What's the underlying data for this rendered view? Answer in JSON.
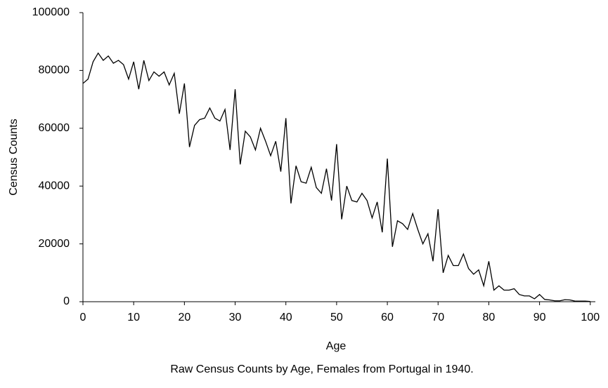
{
  "chart_data": {
    "type": "line",
    "caption": "Raw Census Counts by Age, Females from Portugal in 1940.",
    "xlabel": "Age",
    "ylabel": "Census Counts",
    "color": "#000000",
    "x": [
      0,
      1,
      2,
      3,
      4,
      5,
      6,
      7,
      8,
      9,
      10,
      11,
      12,
      13,
      14,
      15,
      16,
      17,
      18,
      19,
      20,
      21,
      22,
      23,
      24,
      25,
      26,
      27,
      28,
      29,
      30,
      31,
      32,
      33,
      34,
      35,
      36,
      37,
      38,
      39,
      40,
      41,
      42,
      43,
      44,
      45,
      46,
      47,
      48,
      49,
      50,
      51,
      52,
      53,
      54,
      55,
      56,
      57,
      58,
      59,
      60,
      61,
      62,
      63,
      64,
      65,
      66,
      67,
      68,
      69,
      70,
      71,
      72,
      73,
      74,
      75,
      76,
      77,
      78,
      79,
      80,
      81,
      82,
      83,
      84,
      85,
      86,
      87,
      88,
      89,
      90,
      91,
      92,
      93,
      94,
      95,
      96,
      97,
      98,
      99,
      100
    ],
    "values": [
      75500,
      77000,
      83000,
      86000,
      83500,
      85000,
      82500,
      83500,
      82000,
      77000,
      83000,
      73500,
      83500,
      76500,
      79500,
      78000,
      79500,
      75000,
      79000,
      65000,
      75500,
      53500,
      61000,
      63000,
      63500,
      67000,
      63500,
      62500,
      66500,
      52500,
      73500,
      47500,
      59000,
      57000,
      52500,
      60000,
      55500,
      50500,
      55500,
      45000,
      63500,
      34000,
      47000,
      41500,
      41000,
      46500,
      39500,
      37500,
      46000,
      35000,
      54500,
      28500,
      40000,
      35000,
      34500,
      37500,
      35000,
      29000,
      34500,
      24000,
      49500,
      19000,
      28000,
      27000,
      25000,
      30500,
      25000,
      20000,
      23500,
      14000,
      32000,
      10000,
      16000,
      12500,
      12500,
      16500,
      11500,
      9500,
      11000,
      5500,
      14000,
      4000,
      5500,
      4000,
      4000,
      4500,
      2500,
      2000,
      2000,
      1000,
      2500,
      800,
      600,
      300,
      300,
      700,
      600,
      200,
      200,
      200,
      100
    ],
    "xlim": [
      0,
      101
    ],
    "xticks": [
      0,
      10,
      20,
      30,
      40,
      50,
      60,
      70,
      80,
      90,
      100
    ],
    "ylim": [
      0,
      100000
    ],
    "yticks": [
      0,
      20000,
      40000,
      60000,
      80000,
      100000
    ]
  }
}
